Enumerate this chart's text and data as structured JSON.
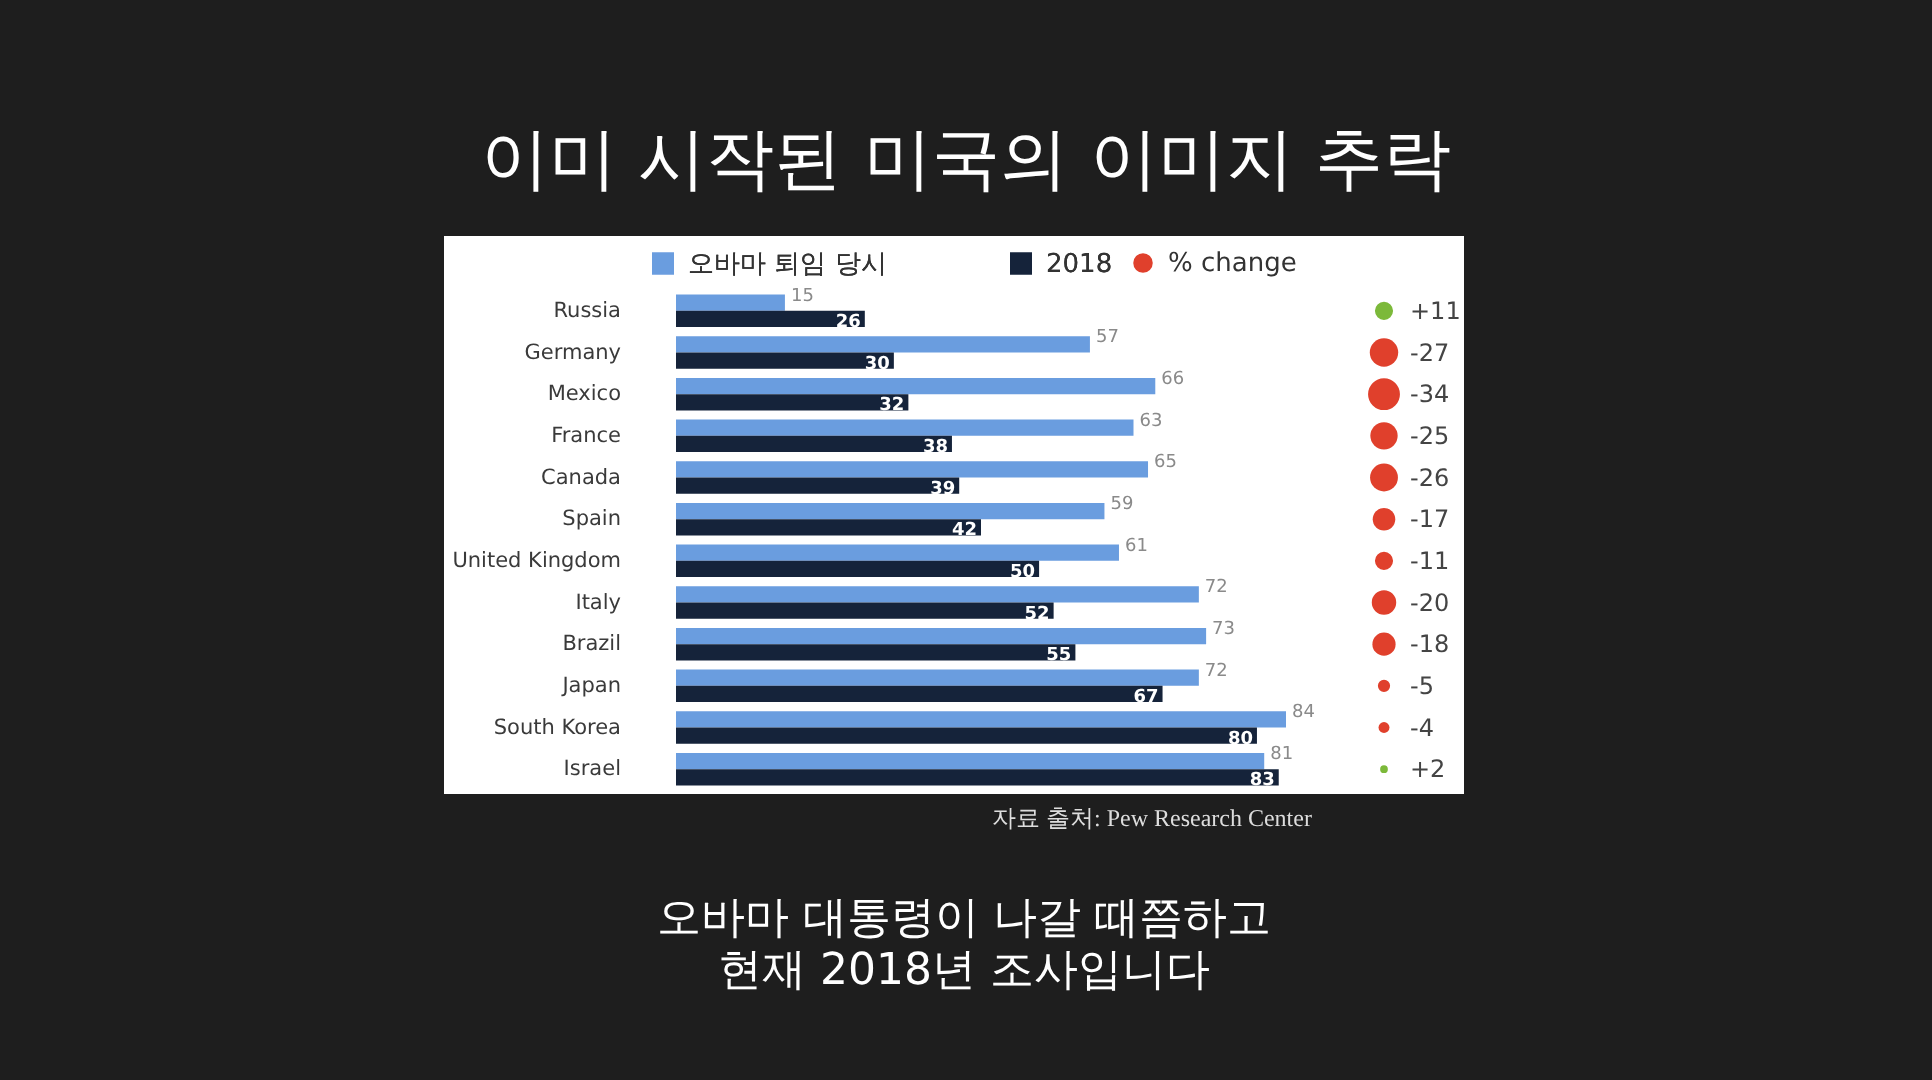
{
  "chart_data": [
    {
      "type": "bar",
      "orientation": "horizontal",
      "title": "이미 시작된 미국의 이미지 추락",
      "categories": [
        "Russia",
        "Germany",
        "Mexico",
        "France",
        "Canada",
        "Spain",
        "United Kingdom",
        "Italy",
        "Brazil",
        "Japan",
        "South Korea",
        "Israel"
      ],
      "series": [
        {
          "name": "오바마 퇴임 당시",
          "color": "#6a9ddf",
          "values": [
            15,
            57,
            66,
            63,
            65,
            59,
            61,
            72,
            73,
            72,
            84,
            81
          ]
        },
        {
          "name": "2018",
          "color": "#15233a",
          "values": [
            26,
            30,
            32,
            38,
            39,
            42,
            50,
            52,
            55,
            67,
            80,
            83
          ]
        }
      ],
      "data_labels": true,
      "legend": "top",
      "tick_labels": "y",
      "annotations": [
        "자료 출처: Pew Research Center",
        "오바마 대통령이 나갈 때쯤하고\n현재 2018년 조사입니다"
      ]
    },
    {
      "type": "other",
      "series": [
        {
          "name": "% change",
          "values": [
            11,
            -27,
            -34,
            -25,
            -26,
            -17,
            -11,
            -20,
            -18,
            -5,
            -4,
            2
          ],
          "colors": [
            "#7cb93a",
            "#e0402c",
            "#e0402c",
            "#e0402c",
            "#e0402c",
            "#e0402c",
            "#e0402c",
            "#e0402c",
            "#e0402c",
            "#e0402c",
            "#e0402c",
            "#7cb93a"
          ],
          "value_labels": [
            "+11",
            "-27",
            "-34",
            "-25",
            "-26",
            "-17",
            "-11",
            "-20",
            "-18",
            "-5",
            "-4",
            "+2"
          ]
        }
      ],
      "legend": "top"
    }
  ]
}
